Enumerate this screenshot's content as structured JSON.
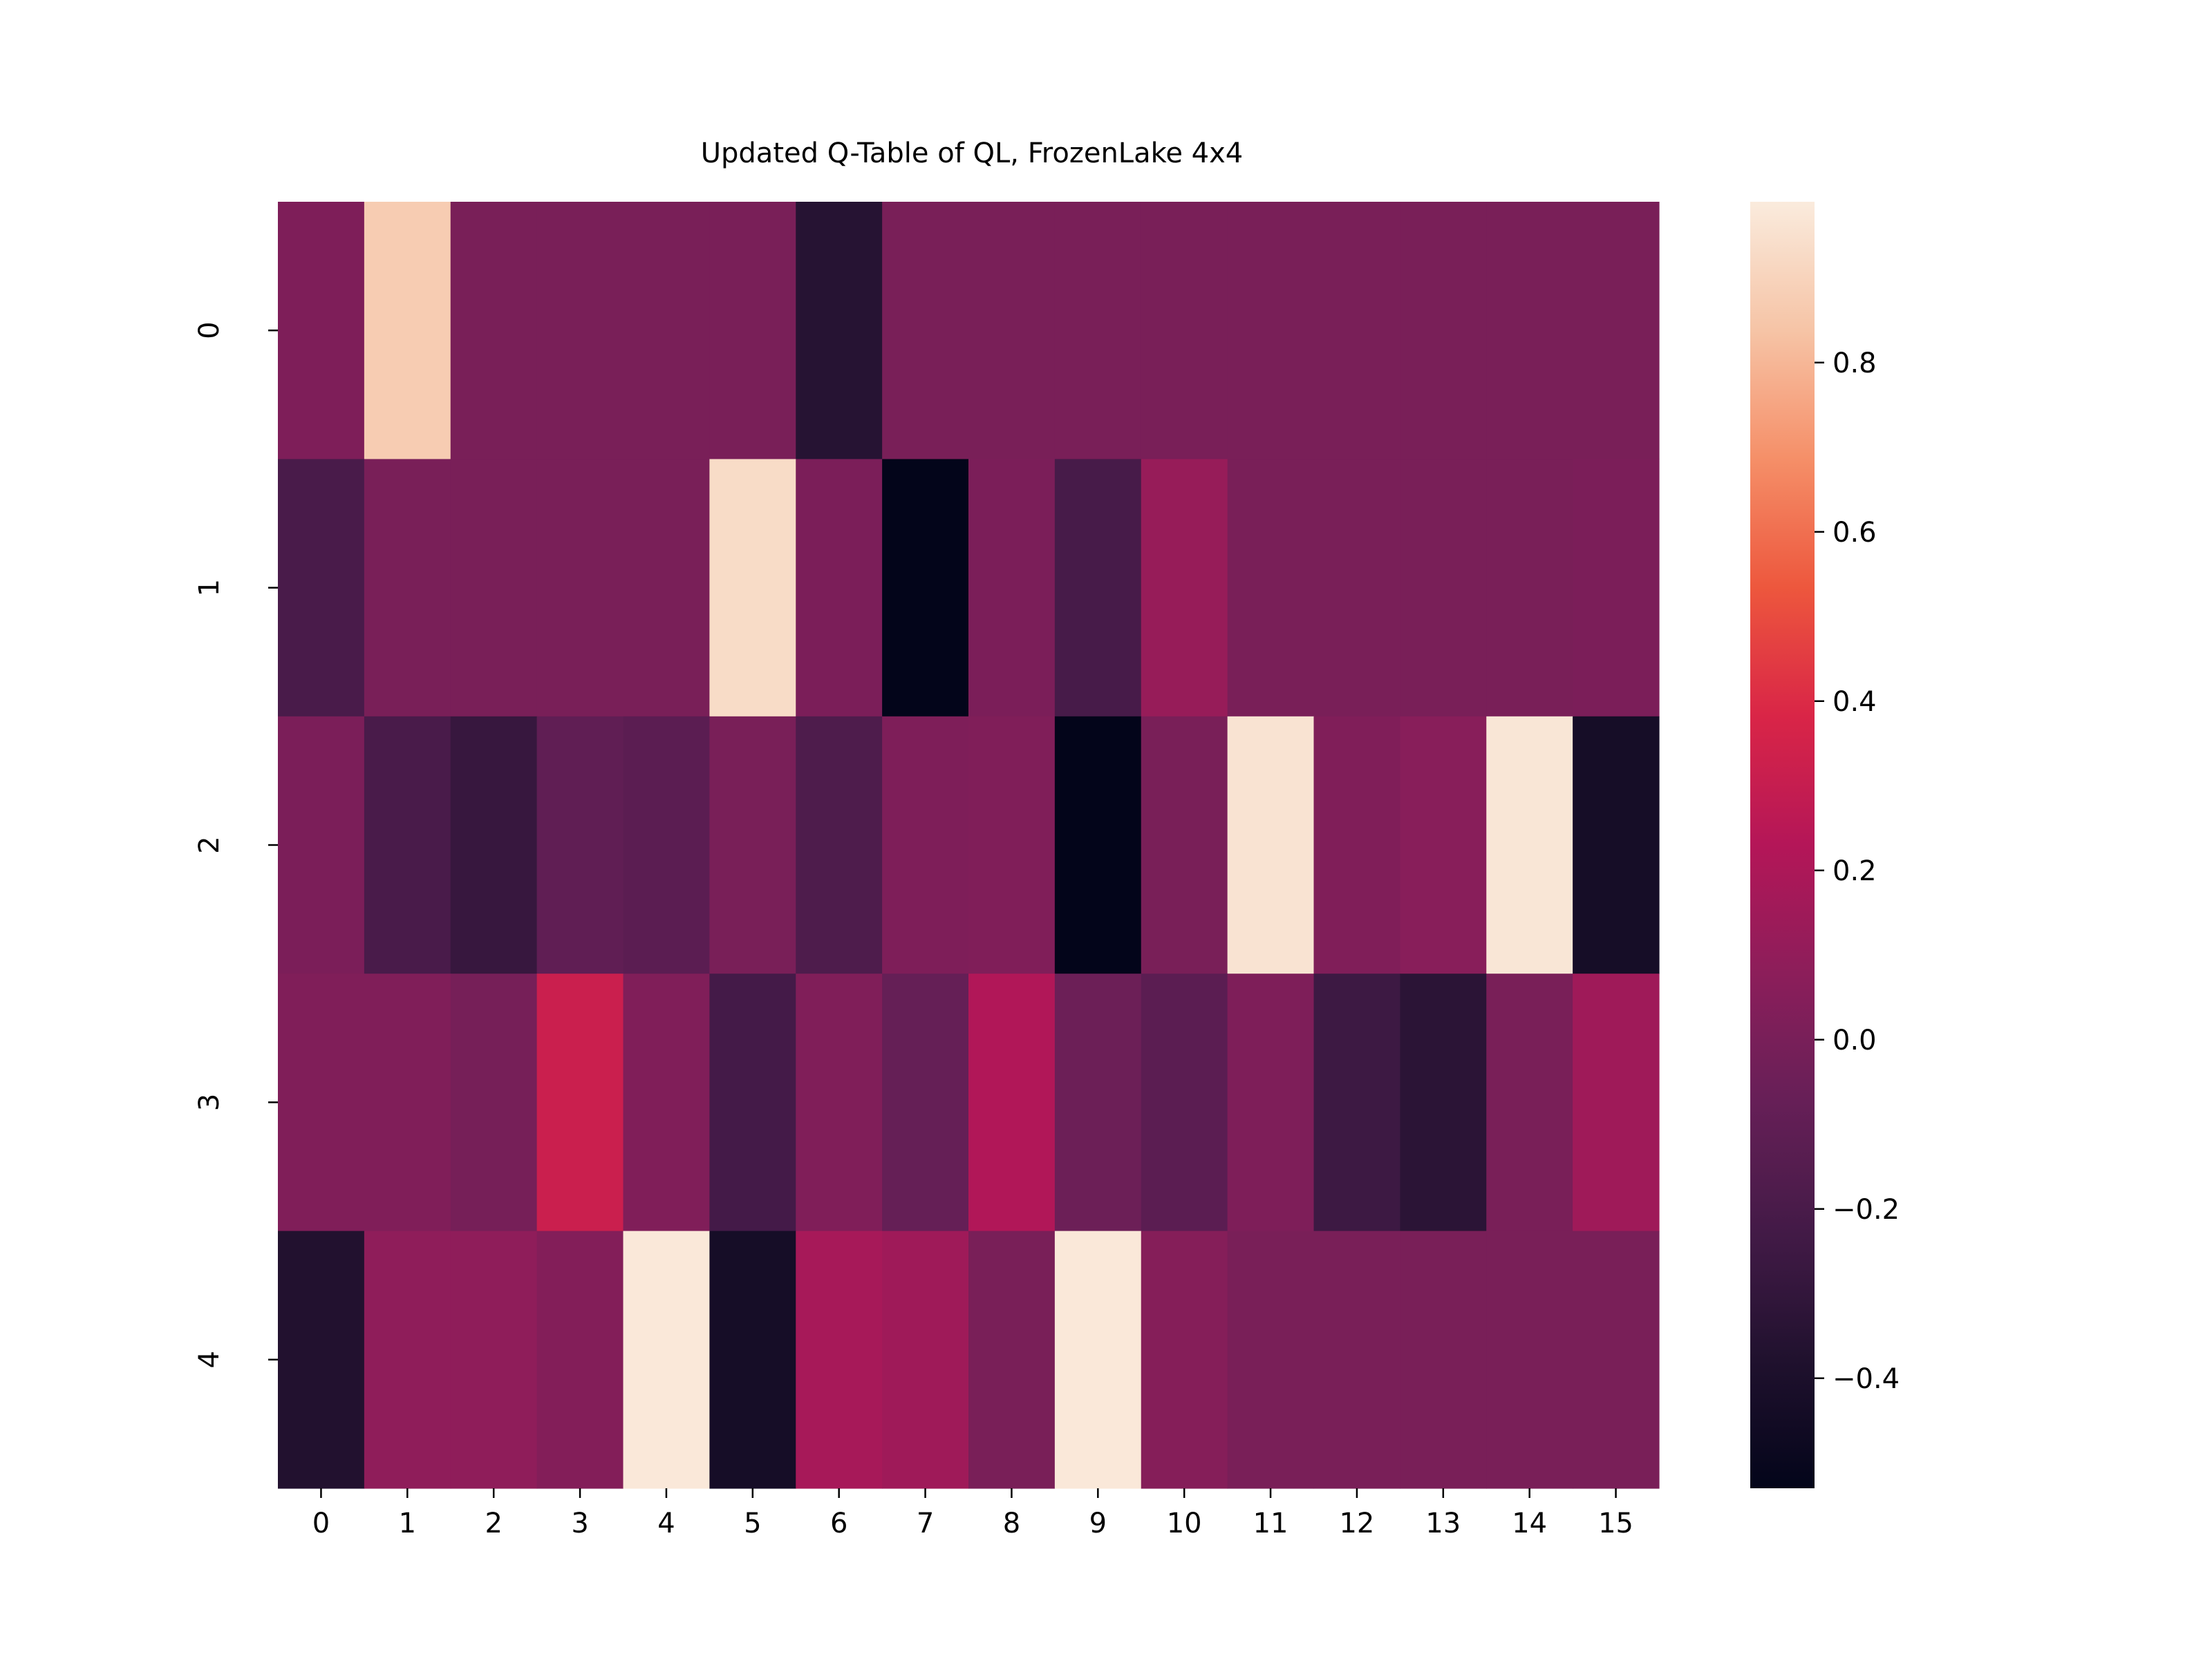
{
  "chart_data": {
    "type": "heatmap",
    "title": "Updated Q-Table of QL, FrozenLake 4x4",
    "xlabel": "",
    "ylabel": "",
    "x_ticks": [
      "0",
      "1",
      "2",
      "3",
      "4",
      "5",
      "6",
      "7",
      "8",
      "9",
      "10",
      "11",
      "12",
      "13",
      "14",
      "15"
    ],
    "y_ticks": [
      "0",
      "1",
      "2",
      "3",
      "4"
    ],
    "colormap": "rocket",
    "vmin": -0.53,
    "vmax": 0.99,
    "colorbar_ticks": [
      "0.8",
      "0.6",
      "0.4",
      "0.2",
      "0.0",
      "−0.2",
      "−0.4"
    ],
    "colorbar_tick_values": [
      0.8,
      0.6,
      0.4,
      0.2,
      0.0,
      -0.2,
      -0.4
    ],
    "values": [
      [
        0.02,
        0.87,
        0.0,
        0.0,
        0.0,
        0.0,
        -0.35,
        0.0,
        0.0,
        0.0,
        0.0,
        0.0,
        0.0,
        0.0,
        0.0,
        0.0
      ],
      [
        -0.2,
        0.0,
        0.0,
        0.0,
        0.0,
        0.93,
        0.01,
        -0.53,
        0.01,
        -0.21,
        0.12,
        0.0,
        0.0,
        0.0,
        0.0,
        0.01
      ],
      [
        0.01,
        -0.2,
        -0.28,
        -0.1,
        -0.12,
        0.0,
        -0.18,
        0.02,
        0.03,
        -0.53,
        0.0,
        0.96,
        0.03,
        0.06,
        0.97,
        -0.43
      ],
      [
        0.03,
        0.03,
        -0.01,
        0.32,
        0.03,
        -0.22,
        0.03,
        -0.08,
        0.22,
        -0.05,
        -0.12,
        0.02,
        -0.25,
        -0.33,
        0.0,
        0.15
      ],
      [
        -0.37,
        0.09,
        0.09,
        0.04,
        0.98,
        -0.43,
        0.18,
        0.15,
        0.0,
        0.98,
        0.05,
        0.0,
        0.0,
        0.0,
        0.0,
        0.0
      ]
    ]
  }
}
